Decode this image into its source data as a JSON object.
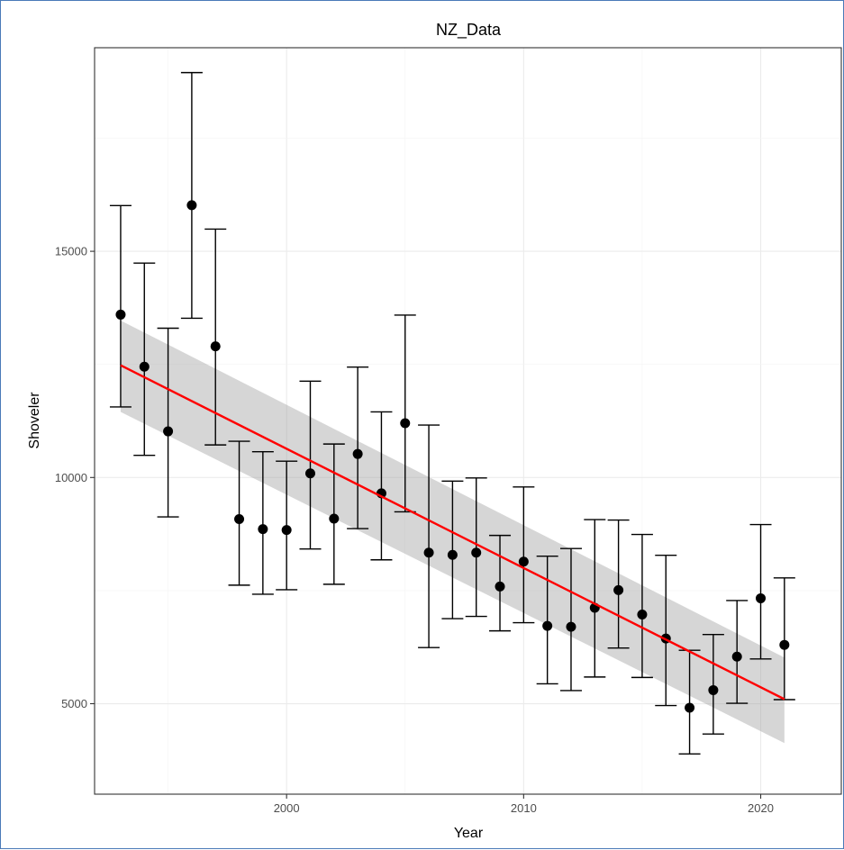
{
  "chart_data": {
    "type": "scatter",
    "title": "NZ_Data",
    "xlabel": "Year",
    "ylabel": "Shoveler",
    "xlim": [
      1991.9,
      2023.4
    ],
    "ylim": [
      3000,
      19500
    ],
    "x_ticks": [
      2000,
      2010,
      2020
    ],
    "y_ticks": [
      5000,
      10000,
      15000
    ],
    "x_tick_labels": [
      "2000",
      "2010",
      "2020"
    ],
    "y_tick_labels": [
      "5000",
      "10000",
      "15000"
    ],
    "grid": true,
    "legend": "none",
    "series": [
      {
        "x": [
          1993,
          1994,
          1995,
          1996,
          1997,
          1998,
          1999,
          2000,
          2001,
          2002,
          2003,
          2004,
          2005,
          2006,
          2007,
          2008,
          2009,
          2010,
          2011,
          2012,
          2013,
          2014,
          2015,
          2016,
          2017,
          2018,
          2019,
          2020,
          2021
        ],
        "y": [
          13600,
          12450,
          11020,
          16020,
          12900,
          9080,
          8860,
          8840,
          10090,
          9090,
          10520,
          9650,
          11200,
          8340,
          8290,
          8340,
          7590,
          8140,
          6720,
          6700,
          7120,
          7510,
          6970,
          6440,
          4910,
          5300,
          6040,
          7330,
          6300
        ],
        "ymin": [
          11560,
          10490,
          9130,
          13520,
          10720,
          7620,
          7420,
          7520,
          8420,
          7640,
          8870,
          8180,
          9240,
          6240,
          6880,
          6930,
          6610,
          6790,
          5440,
          5290,
          5590,
          6230,
          5580,
          4960,
          3890,
          4330,
          5010,
          5990,
          5090
        ],
        "ymax": [
          16010,
          14740,
          13300,
          18950,
          15490,
          10800,
          10570,
          10360,
          12130,
          10740,
          12440,
          11450,
          13590,
          11160,
          9920,
          9990,
          8720,
          9790,
          8260,
          8430,
          9070,
          9060,
          8740,
          8280,
          6180,
          6530,
          7280,
          8960,
          7780
        ]
      }
    ],
    "trend": {
      "x": [
        1993,
        2021
      ],
      "y": [
        12480,
        5100
      ],
      "ci_low": [
        11450,
        4130
      ],
      "ci_high": [
        13470,
        6020
      ],
      "color": "#ff0000",
      "ribbon_color": "#999999"
    },
    "point_color": "#000000"
  }
}
